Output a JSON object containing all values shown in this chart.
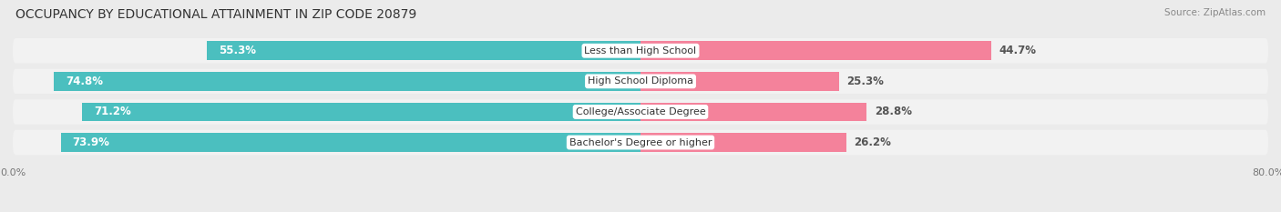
{
  "title": "OCCUPANCY BY EDUCATIONAL ATTAINMENT IN ZIP CODE 20879",
  "source": "Source: ZipAtlas.com",
  "categories": [
    "Less than High School",
    "High School Diploma",
    "College/Associate Degree",
    "Bachelor's Degree or higher"
  ],
  "owner_values": [
    55.3,
    74.8,
    71.2,
    73.9
  ],
  "renter_values": [
    44.7,
    25.3,
    28.8,
    26.2
  ],
  "owner_color": "#4bbfbf",
  "renter_color": "#f4829b",
  "background_color": "#ebebeb",
  "bar_bg_color": "#e0e0e0",
  "bar_inner_bg": "#f8f8f8",
  "xaxis_left_label": "0.0%",
  "xaxis_right_label": "80.0%",
  "title_fontsize": 10,
  "bar_label_fontsize": 8.5,
  "category_fontsize": 8,
  "legend_fontsize": 8.5,
  "axis_label_fontsize": 8,
  "max_val": 80.0
}
